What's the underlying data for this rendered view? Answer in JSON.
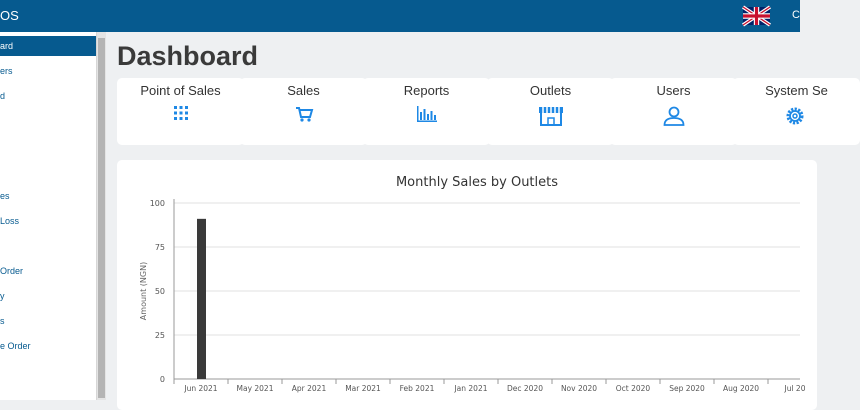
{
  "header": {
    "brand": "OS",
    "flag_icon": "uk-flag-icon",
    "user_initial": "C"
  },
  "sidebar": {
    "items": [
      {
        "label": "ard",
        "active": true
      },
      {
        "label": "ers",
        "active": false
      },
      {
        "label": "d",
        "active": false
      },
      {
        "label": "es",
        "active": false
      },
      {
        "label": "Loss",
        "active": false
      },
      {
        "label": "Order",
        "active": false
      },
      {
        "label": "y",
        "active": false
      },
      {
        "label": "s",
        "active": false
      },
      {
        "label": "e Order",
        "active": false
      }
    ]
  },
  "page": {
    "title": "Dashboard"
  },
  "cards": [
    {
      "label": "Point of Sales",
      "icon": "grid-icon"
    },
    {
      "label": "Sales",
      "icon": "cart-icon"
    },
    {
      "label": "Reports",
      "icon": "bar-chart-icon"
    },
    {
      "label": "Outlets",
      "icon": "store-icon"
    },
    {
      "label": "Users",
      "icon": "user-icon"
    },
    {
      "label": "System Se",
      "icon": "gear-icon"
    }
  ],
  "colors": {
    "brand": "#065a8f",
    "accent": "#1e88e5",
    "bar": "#3a3a3a"
  },
  "chart_data": {
    "type": "bar",
    "title": "Monthly Sales by Outlets",
    "ylabel": "Amount (NGN)",
    "xlabel": "",
    "ylim": [
      0,
      100
    ],
    "yticks": [
      0,
      25,
      50,
      75,
      100
    ],
    "categories": [
      "Jun 2021",
      "May 2021",
      "Apr 2021",
      "Mar 2021",
      "Feb 2021",
      "Jan 2021",
      "Dec 2020",
      "Nov 2020",
      "Oct 2020",
      "Sep 2020",
      "Aug 2020",
      "Jul 20"
    ],
    "values": [
      91,
      0,
      0,
      0,
      0,
      0,
      0,
      0,
      0,
      0,
      0,
      0
    ],
    "grid": true
  }
}
